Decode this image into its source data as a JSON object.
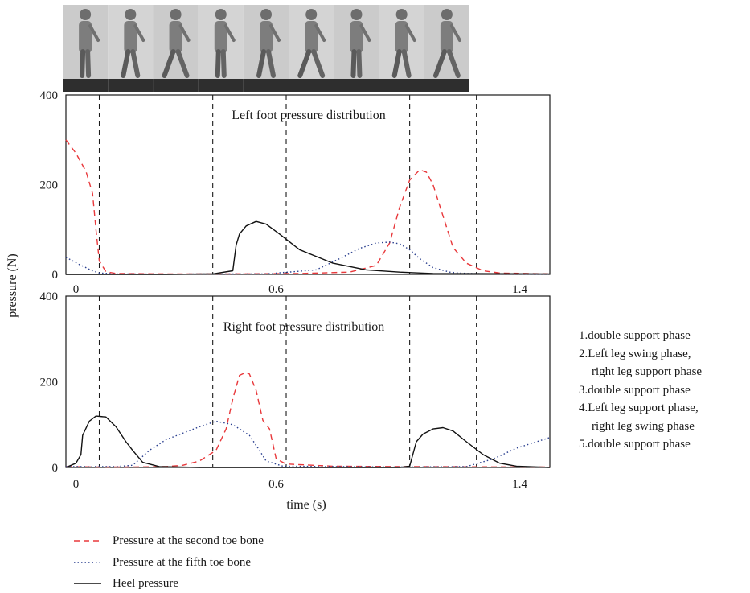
{
  "chart_data": [
    {
      "type": "line",
      "title": "Left foot pressure distribution",
      "xlim": [
        0,
        1.45
      ],
      "ylim": [
        0,
        400
      ],
      "x_ticks": [
        "0",
        "0.6",
        "1.4"
      ],
      "y_ticks": [
        "0",
        "200",
        "400"
      ],
      "ylabel": "pressure (N)",
      "phase_lines_x": [
        0.1,
        0.44,
        0.66,
        1.03,
        1.23
      ],
      "series": [
        {
          "name": "Pressure at the second toe bone",
          "color": "#e8383b",
          "dash": "dashed",
          "x": [
            0,
            0.03,
            0.06,
            0.08,
            0.09,
            0.1,
            0.12,
            0.15,
            0.3,
            0.5,
            0.7,
            0.85,
            0.93,
            0.97,
            1.0,
            1.03,
            1.06,
            1.08,
            1.1,
            1.13,
            1.16,
            1.2,
            1.25,
            1.3,
            1.45
          ],
          "y": [
            300,
            270,
            230,
            180,
            100,
            30,
            6,
            2,
            1,
            1,
            2,
            5,
            20,
            70,
            150,
            210,
            233,
            228,
            200,
            130,
            60,
            25,
            8,
            3,
            1
          ]
        },
        {
          "name": "Pressure at the fifth toe bone",
          "color": "#2a3f8f",
          "dash": "dotted",
          "x": [
            0,
            0.04,
            0.08,
            0.1,
            0.15,
            0.3,
            0.6,
            0.75,
            0.82,
            0.88,
            0.93,
            0.97,
            1.0,
            1.03,
            1.06,
            1.1,
            1.15,
            1.2,
            1.3,
            1.45
          ],
          "y": [
            38,
            22,
            8,
            3,
            1,
            0.5,
            1,
            10,
            35,
            58,
            70,
            72,
            68,
            55,
            35,
            15,
            5,
            2,
            1,
            0.5
          ]
        },
        {
          "name": "Heel pressure",
          "color": "#111111",
          "dash": "solid",
          "x": [
            0,
            0.3,
            0.44,
            0.5,
            0.51,
            0.52,
            0.54,
            0.57,
            0.6,
            0.64,
            0.7,
            0.8,
            0.9,
            1.0,
            1.1,
            1.45
          ],
          "y": [
            0,
            0,
            1,
            8,
            65,
            90,
            108,
            118,
            112,
            90,
            55,
            25,
            10,
            5,
            2,
            1
          ]
        }
      ]
    },
    {
      "type": "line",
      "title": "Right foot pressure distribution",
      "xlim": [
        0,
        1.45
      ],
      "ylim": [
        0,
        400
      ],
      "x_ticks": [
        "0",
        "0.6",
        "1.4"
      ],
      "y_ticks": [
        "0",
        "200",
        "400"
      ],
      "xlabel": "time (s)",
      "phase_lines_x": [
        0.1,
        0.44,
        0.66,
        1.03,
        1.23
      ],
      "series": [
        {
          "name": "Pressure at the second toe bone",
          "color": "#e8383b",
          "dash": "dashed",
          "x": [
            0,
            0.1,
            0.2,
            0.3,
            0.35,
            0.4,
            0.45,
            0.48,
            0.5,
            0.52,
            0.54,
            0.55,
            0.57,
            0.59,
            0.61,
            0.63,
            0.66,
            0.8,
            1.0,
            1.45
          ],
          "y": [
            2,
            1,
            1,
            2,
            5,
            15,
            40,
            90,
            160,
            215,
            222,
            218,
            180,
            110,
            90,
            20,
            8,
            3,
            2,
            1
          ]
        },
        {
          "name": "Pressure at the fifth toe bone",
          "color": "#2a3f8f",
          "dash": "dotted",
          "x": [
            0,
            0.15,
            0.2,
            0.25,
            0.3,
            0.35,
            0.4,
            0.45,
            0.5,
            0.55,
            0.58,
            0.6,
            0.65,
            1.0,
            1.2,
            1.28,
            1.35,
            1.45
          ],
          "y": [
            2,
            2,
            5,
            40,
            65,
            80,
            95,
            108,
            100,
            75,
            40,
            15,
            3,
            1,
            2,
            20,
            45,
            70
          ]
        },
        {
          "name": "Heel pressure",
          "color": "#111111",
          "dash": "solid",
          "x": [
            0,
            0.03,
            0.045,
            0.05,
            0.07,
            0.09,
            0.12,
            0.15,
            0.18,
            0.2,
            0.23,
            0.28,
            0.4,
            1.0,
            1.03,
            1.05,
            1.07,
            1.1,
            1.13,
            1.16,
            1.2,
            1.25,
            1.3,
            1.35,
            1.45
          ],
          "y": [
            0,
            10,
            30,
            75,
            108,
            120,
            118,
            95,
            60,
            40,
            12,
            2,
            0,
            0,
            3,
            60,
            78,
            90,
            93,
            85,
            60,
            30,
            10,
            3,
            0
          ]
        }
      ]
    }
  ],
  "legend": [
    {
      "label": "Pressure at the second toe bone",
      "color": "#e8383b",
      "dash": "dashed"
    },
    {
      "label": "Pressure at the fifth toe bone",
      "color": "#2a3f8f",
      "dash": "dotted"
    },
    {
      "label": "Heel pressure",
      "color": "#111111",
      "dash": "solid"
    }
  ],
  "phase_notes": [
    "1.double support phase",
    "2.Left leg swing phase,",
    "right leg support phase",
    "3.double support phase",
    "4.Left leg support phase,",
    "right leg swing phase",
    "5.double support phase"
  ],
  "photo_strip": {
    "frames": 9,
    "tone": "#8a8a8a"
  }
}
